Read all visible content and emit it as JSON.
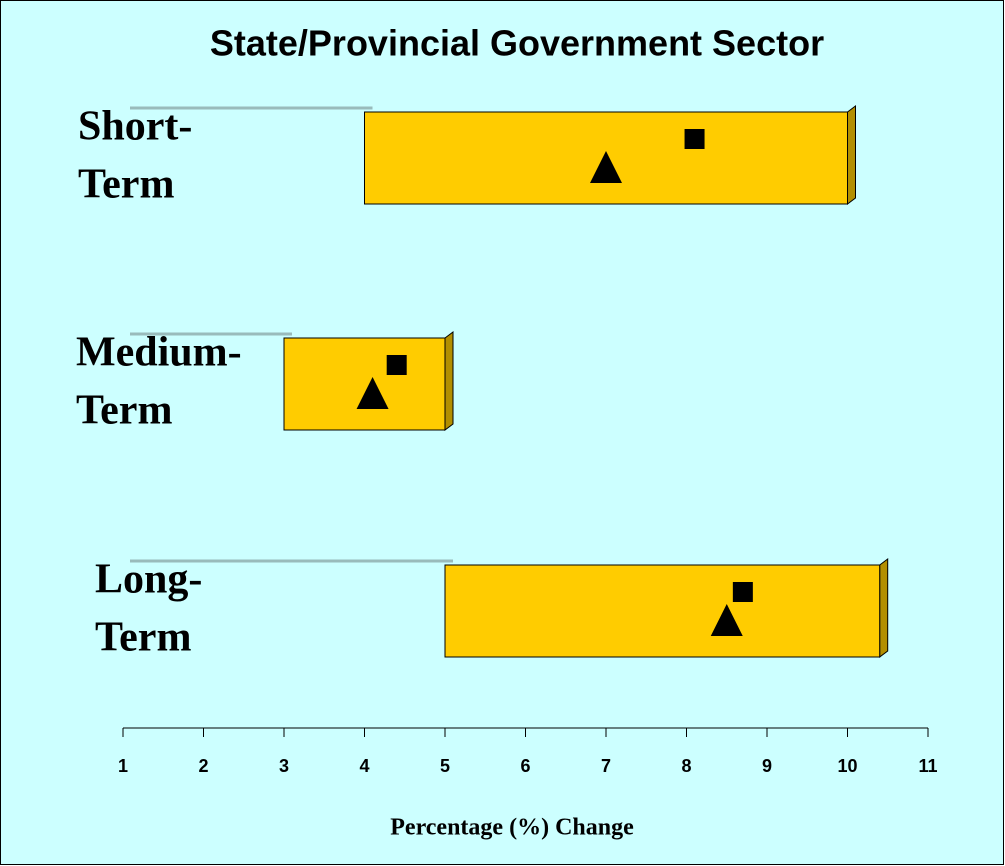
{
  "chart_data": {
    "type": "range_bar",
    "title": "State/Provincial Government Sector",
    "x_label": "Percentage (%) Change",
    "categories": [
      [
        "Short-",
        "Term"
      ],
      [
        "Medium-",
        "Term"
      ],
      [
        "Long-",
        "Term"
      ]
    ],
    "ranges": {
      "color": "#ffcc00",
      "low": [
        4,
        3,
        5
      ],
      "high": [
        10,
        5,
        10.4
      ]
    },
    "markers": [
      {
        "shape": "square",
        "color": "#000000",
        "values": [
          8.1,
          4.4,
          8.7
        ]
      },
      {
        "shape": "triangle",
        "color": "#000000",
        "values": [
          7,
          4.1,
          8.5
        ]
      }
    ],
    "xlim": [
      1,
      11
    ],
    "xticks": [
      1,
      2,
      3,
      4,
      5,
      6,
      7,
      8,
      9,
      10,
      11
    ]
  }
}
